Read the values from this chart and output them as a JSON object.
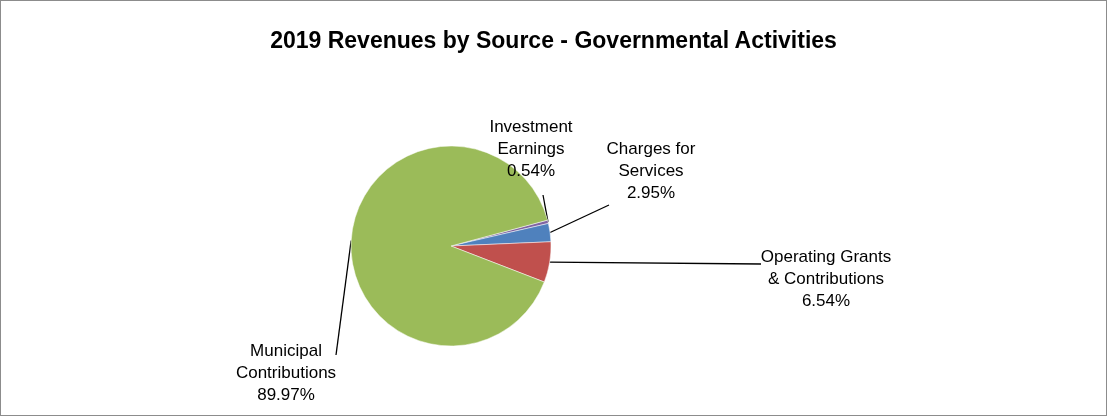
{
  "chart_data": {
    "type": "pie",
    "title": "2019 Revenues by Source - Governmental Activities",
    "categories": [
      "Investment Earnings",
      "Charges for Services",
      "Operating Grants & Contributions",
      "Municipal Contributions"
    ],
    "values": [
      0.54,
      2.95,
      6.54,
      89.97
    ],
    "value_labels": [
      "0.54%",
      "2.95%",
      "6.54%",
      "89.97%"
    ],
    "colors": [
      "#8064a2",
      "#4f81bd",
      "#c0504d",
      "#9bbb59"
    ]
  }
}
